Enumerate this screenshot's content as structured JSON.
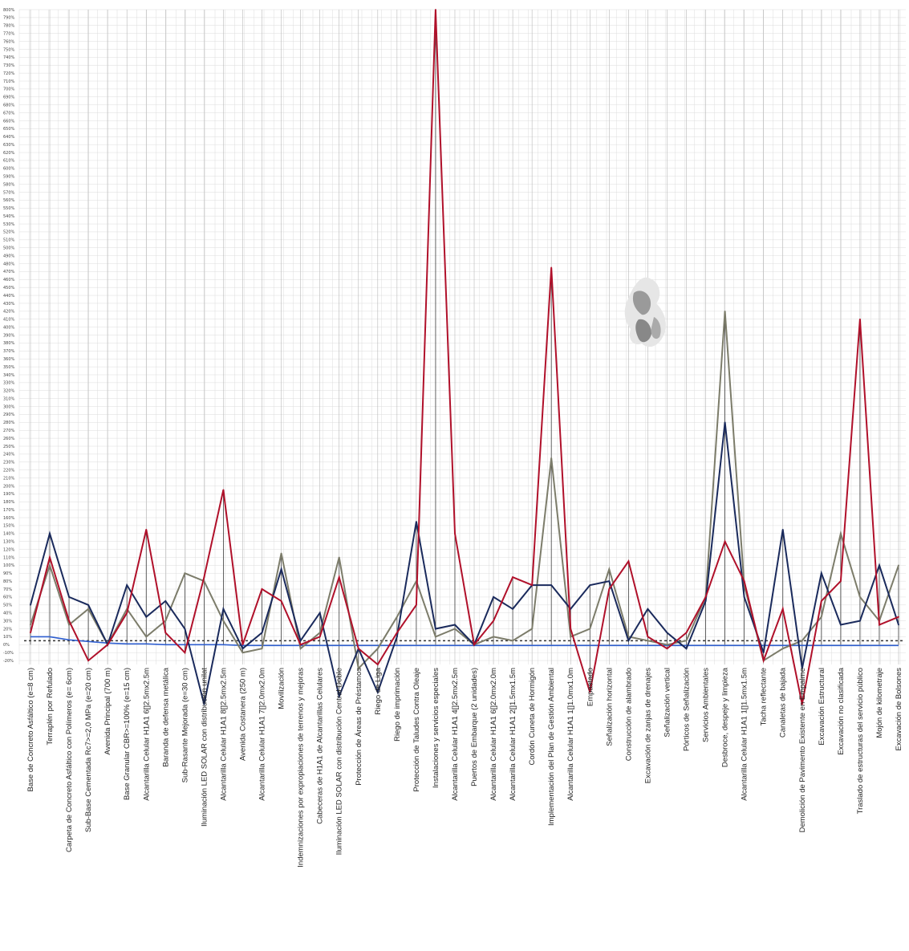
{
  "chart_data": {
    "type": "line",
    "title": "",
    "xlabel": "",
    "ylabel": "",
    "ylim": [
      -25,
      800
    ],
    "y_ticks": [
      "800%",
      "790%",
      "780%",
      "770%",
      "760%",
      "750%",
      "740%",
      "730%",
      "720%",
      "710%",
      "700%",
      "690%",
      "680%",
      "670%",
      "660%",
      "650%",
      "640%",
      "630%",
      "620%",
      "610%",
      "600%",
      "590%",
      "580%",
      "570%",
      "560%",
      "550%",
      "540%",
      "530%",
      "520%",
      "510%",
      "500%",
      "490%",
      "480%",
      "470%",
      "460%",
      "450%",
      "440%",
      "430%",
      "420%",
      "410%",
      "400%",
      "390%",
      "380%",
      "370%",
      "360%",
      "350%",
      "340%",
      "330%",
      "320%",
      "310%",
      "300%",
      "290%",
      "280%",
      "270%",
      "260%",
      "250%",
      "240%",
      "230%",
      "220%",
      "210%",
      "200%",
      "190%",
      "180%",
      "170%",
      "160%",
      "150%",
      "140%",
      "130%",
      "120%",
      "110%",
      "100%",
      "90%",
      "80%",
      "70%",
      "60%",
      "50%",
      "40%",
      "30%",
      "20%",
      "10%",
      "0%",
      "-10%",
      "-20%"
    ],
    "y_tick_values": [
      800,
      790,
      780,
      770,
      760,
      750,
      740,
      730,
      720,
      710,
      700,
      690,
      680,
      670,
      660,
      650,
      640,
      630,
      620,
      610,
      600,
      590,
      580,
      570,
      560,
      550,
      540,
      530,
      520,
      510,
      500,
      490,
      480,
      470,
      460,
      450,
      440,
      430,
      420,
      410,
      400,
      390,
      380,
      370,
      360,
      350,
      340,
      330,
      320,
      310,
      300,
      290,
      280,
      270,
      260,
      250,
      240,
      230,
      220,
      210,
      200,
      190,
      180,
      170,
      160,
      150,
      140,
      130,
      120,
      110,
      100,
      90,
      80,
      70,
      60,
      50,
      40,
      30,
      20,
      10,
      0,
      -10,
      -20
    ],
    "categories": [
      "Base de Concreto Asfáltico (e=8 cm)",
      "Terraplén por Refulado",
      "Carpeta de Concreto Asfáltico con Polímeros (e= 6cm)",
      "Sub-Base Cementada Rc7>=2,0 MPa (e=20 cm)",
      "Avenida Principal (700 m)",
      "Base Granular CBR>=100% (e=15 cm)",
      "Alcantarilla Celular H1A1 6[]2.5mx2.5m",
      "Baranda de defensa metálica",
      "Sub-Rasante Mejorada (e=30 cm)",
      "Iluminación LED SOLAR con distribución unilat",
      "Alcantarilla Celular H1A1 8[]2.5mx2.5m",
      "Avenida Costanera (250 m)",
      "Alcantarilla Celular H1A1 7[]2.0mx2.0m",
      "Movilización",
      "Indemnizaciones por expropiaciones de terrenos y mejoras",
      "Cabeceras de H1A1 de Alcantarillas Celulares",
      "Iluminación LED SOLAR con distribución Central Doble",
      "Protección de Áreas de Préstamos",
      "Riego de Liga",
      "Riego de imprimación",
      "Protección de Taludes Contra Oleaje",
      "Instalaciones y servicios especiales",
      "Alcantarilla Celular H1A1 4[]2.5mx2.5m",
      "Puertos de Embarque (2 unidades)",
      "Alcantarilla Celular H1A1 6[]2.0mx2.0m",
      "Alcantarilla Celular H1A1 2[]1.5mx1.5m",
      "Cordón Cuneta de Hormigón",
      "Implementación del Plan de Gestión Ambiental",
      "Alcantarilla Celular H1A1 1[]1.0mx1.0m",
      "Empastado",
      "Señalización horizontal",
      "Construcción de alambrado",
      "Excavación de zanjas de drenajes",
      "Señalización vertical",
      "Pórticos de Señalización",
      "Servicios Ambientales",
      "Desbroce, despeje y limpieza",
      "Alcantarilla Celular H1A1 1[]1.5mx1.5m",
      "Tacha reflectante",
      "Canaletas de bajada",
      "Demolición de Pavimento Existente en Empalme",
      "Excavación Estructural",
      "Excavación no clasificada",
      "Traslado de estructuras del servicio público",
      "Mojón de kilometraje",
      "Excavación de Bolsones"
    ],
    "series": [
      {
        "color": "#b0102a",
        "values": [
          15,
          110,
          30,
          -20,
          0,
          40,
          145,
          15,
          -10,
          85,
          195,
          0,
          70,
          55,
          0,
          10,
          85,
          -5,
          -25,
          15,
          50,
          800,
          140,
          0,
          30,
          85,
          75,
          475,
          20,
          -60,
          70,
          105,
          10,
          -5,
          15,
          60,
          130,
          80,
          -20,
          45,
          -75,
          55,
          80,
          410,
          25,
          35
        ]
      },
      {
        "color": "#1a2a5c",
        "values": [
          50,
          140,
          60,
          50,
          0,
          75,
          35,
          55,
          20,
          -75,
          45,
          -5,
          15,
          95,
          5,
          40,
          -65,
          -5,
          -60,
          10,
          155,
          20,
          25,
          0,
          60,
          45,
          75,
          75,
          45,
          75,
          80,
          5,
          45,
          15,
          -5,
          55,
          280,
          60,
          -10,
          145,
          -30,
          90,
          25,
          30,
          100,
          25
        ]
      },
      {
        "color": "#7c7c6a",
        "values": [
          25,
          100,
          25,
          45,
          0,
          45,
          10,
          30,
          90,
          80,
          30,
          -10,
          -5,
          115,
          -5,
          15,
          110,
          -30,
          -5,
          35,
          80,
          10,
          20,
          0,
          10,
          5,
          20,
          235,
          10,
          20,
          95,
          10,
          5,
          0,
          5,
          60,
          420,
          75,
          -20,
          -5,
          5,
          35,
          140,
          60,
          30,
          100
        ]
      }
    ],
    "baseline": {
      "color": "#2f5fd0",
      "values": [
        10,
        10,
        6,
        4,
        2,
        1,
        1,
        0,
        0,
        0,
        0,
        -1,
        -1,
        -1,
        -1,
        -1,
        -1,
        -1,
        -1,
        -1,
        -1,
        -1,
        -1,
        -1,
        -1,
        -1,
        -1,
        -1,
        -1,
        -1,
        -1,
        -1,
        -1,
        -1,
        -1,
        -1,
        -1,
        -1,
        -1,
        -1,
        -1,
        -1,
        -1,
        -1,
        -1,
        -1
      ]
    },
    "reference_line_value": 5,
    "grid": true,
    "legend": "none"
  }
}
